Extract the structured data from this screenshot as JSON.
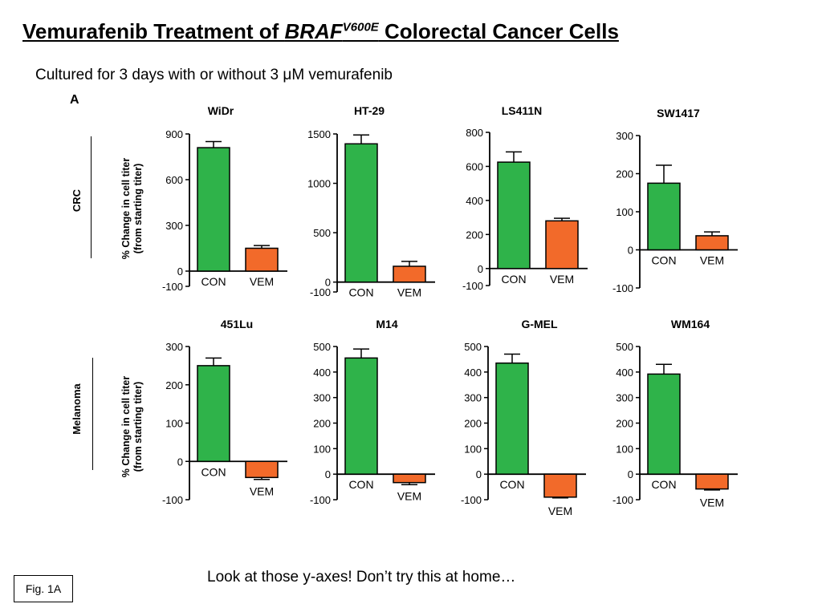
{
  "slide": {
    "title_prefix": "Vemurafenib Treatment of ",
    "title_gene": "BRAF",
    "title_mutation": "V600E",
    "title_suffix": " Colorectal Cancer Cells",
    "subtitle": "Cultured for 3 days with or without 3 μM vemurafenib",
    "panel_letter": "A",
    "row_labels": [
      "CRC",
      "Melanoma"
    ],
    "y_axis_label_line1": "% Change in cell titer",
    "y_axis_label_line2": "(from starting titer)",
    "footnote": "Look at those y-axes!  Don’t try this at home…",
    "figure_label": "Fig. 1A"
  },
  "colors": {
    "con": "#2fb34a",
    "vem": "#f26a2a",
    "axis": "#000000"
  },
  "chart_data": [
    {
      "type": "bar",
      "title": "WiDr",
      "group": "CRC",
      "categories": [
        "CON",
        "VEM"
      ],
      "values": [
        810,
        150
      ],
      "errors": [
        40,
        18
      ],
      "ylim": [
        -100,
        900
      ],
      "yticks": [
        -100,
        0,
        300,
        600,
        900
      ]
    },
    {
      "type": "bar",
      "title": "HT-29",
      "group": "CRC",
      "categories": [
        "CON",
        "VEM"
      ],
      "values": [
        1400,
        160
      ],
      "errors": [
        90,
        50
      ],
      "ylim": [
        -100,
        1500
      ],
      "yticks": [
        -100,
        0,
        500,
        1000,
        1500
      ]
    },
    {
      "type": "bar",
      "title": "LS411N",
      "group": "CRC",
      "categories": [
        "CON",
        "VEM"
      ],
      "values": [
        625,
        280
      ],
      "errors": [
        60,
        15
      ],
      "ylim": [
        -100,
        800
      ],
      "yticks": [
        -100,
        0,
        200,
        400,
        600,
        800
      ]
    },
    {
      "type": "bar",
      "title": "SW1417",
      "group": "CRC",
      "categories": [
        "CON",
        "VEM"
      ],
      "values": [
        175,
        37
      ],
      "errors": [
        47,
        10
      ],
      "ylim": [
        -100,
        300
      ],
      "yticks": [
        -100,
        0,
        100,
        200,
        300
      ]
    },
    {
      "type": "bar",
      "title": "451Lu",
      "group": "Melanoma",
      "categories": [
        "CON",
        "VEM"
      ],
      "values": [
        250,
        -42
      ],
      "errors": [
        20,
        5
      ],
      "ylim": [
        -100,
        300
      ],
      "yticks": [
        -100,
        0,
        100,
        200,
        300
      ]
    },
    {
      "type": "bar",
      "title": "M14",
      "group": "Melanoma",
      "categories": [
        "CON",
        "VEM"
      ],
      "values": [
        455,
        -33
      ],
      "errors": [
        35,
        8
      ],
      "ylim": [
        -100,
        500
      ],
      "yticks": [
        -100,
        0,
        100,
        200,
        300,
        400,
        500
      ]
    },
    {
      "type": "bar",
      "title": "G-MEL",
      "group": "Melanoma",
      "categories": [
        "CON",
        "VEM"
      ],
      "values": [
        435,
        -90
      ],
      "errors": [
        35,
        3
      ],
      "ylim": [
        -100,
        500
      ],
      "yticks": [
        -100,
        0,
        100,
        200,
        300,
        400,
        500
      ]
    },
    {
      "type": "bar",
      "title": "WM164",
      "group": "Melanoma",
      "categories": [
        "CON",
        "VEM"
      ],
      "values": [
        392,
        -58
      ],
      "errors": [
        38,
        4
      ],
      "ylim": [
        -100,
        500
      ],
      "yticks": [
        -100,
        0,
        100,
        200,
        300,
        400,
        500
      ]
    }
  ]
}
